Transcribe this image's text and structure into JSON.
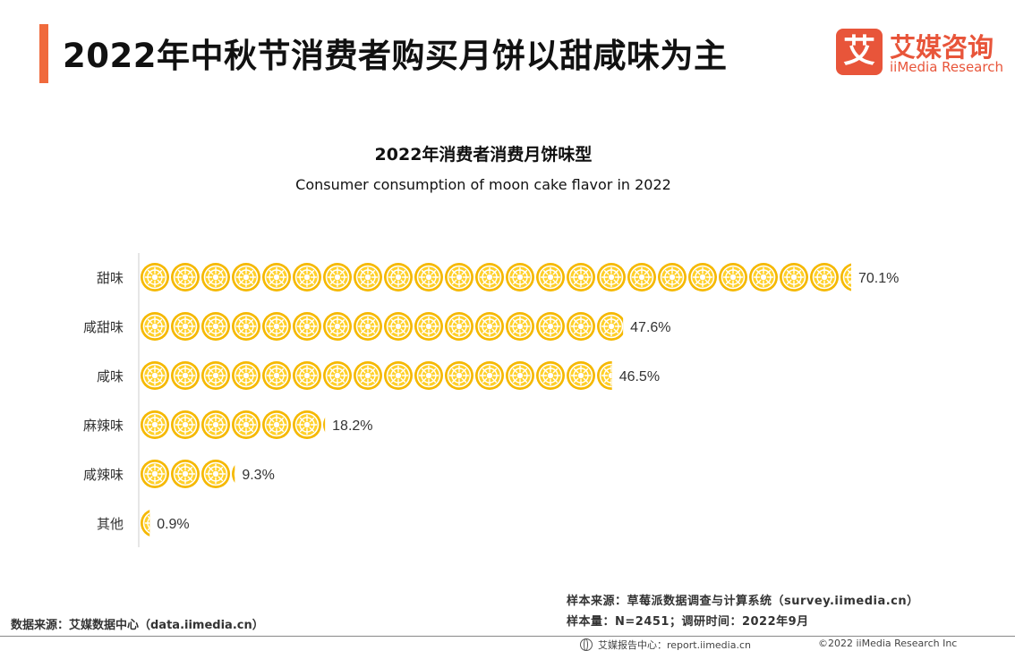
{
  "header": {
    "title": "2022年中秋节消费者购买月饼以甜咸味为主",
    "accent_color": "#f06a3c"
  },
  "logo": {
    "mark": "艾",
    "cn": "艾媒咨询",
    "en": "iiMedia Research",
    "color": "#e8553a"
  },
  "chart_data": {
    "type": "bar",
    "orientation": "horizontal",
    "title": "2022年消费者消费月饼味型",
    "subtitle": "Consumer consumption of moon cake flavor in 2022",
    "categories": [
      "甜味",
      "咸甜味",
      "咸味",
      "麻辣味",
      "咸辣味",
      "其他"
    ],
    "values": [
      70.1,
      47.6,
      46.5,
      18.2,
      9.3,
      0.9
    ],
    "value_labels": [
      "70.1%",
      "47.6%",
      "46.5%",
      "18.2%",
      "9.3%",
      "0.9%"
    ],
    "unit": "%",
    "xlim": [
      0,
      70.1
    ],
    "marker": "mooncake-icon",
    "marker_color": "#f5b800"
  },
  "footer": {
    "data_source": "数据来源：艾媒数据中心（data.iimedia.cn）",
    "sample_source": "样本来源：草莓派数据调查与计算系统（survey.iimedia.cn）",
    "sample_size": "样本量：N=2451；调研时间：2022年9月",
    "report": "艾媒报告中心：report.iimedia.cn",
    "copyright": "©2022  iiMedia Research  Inc"
  }
}
